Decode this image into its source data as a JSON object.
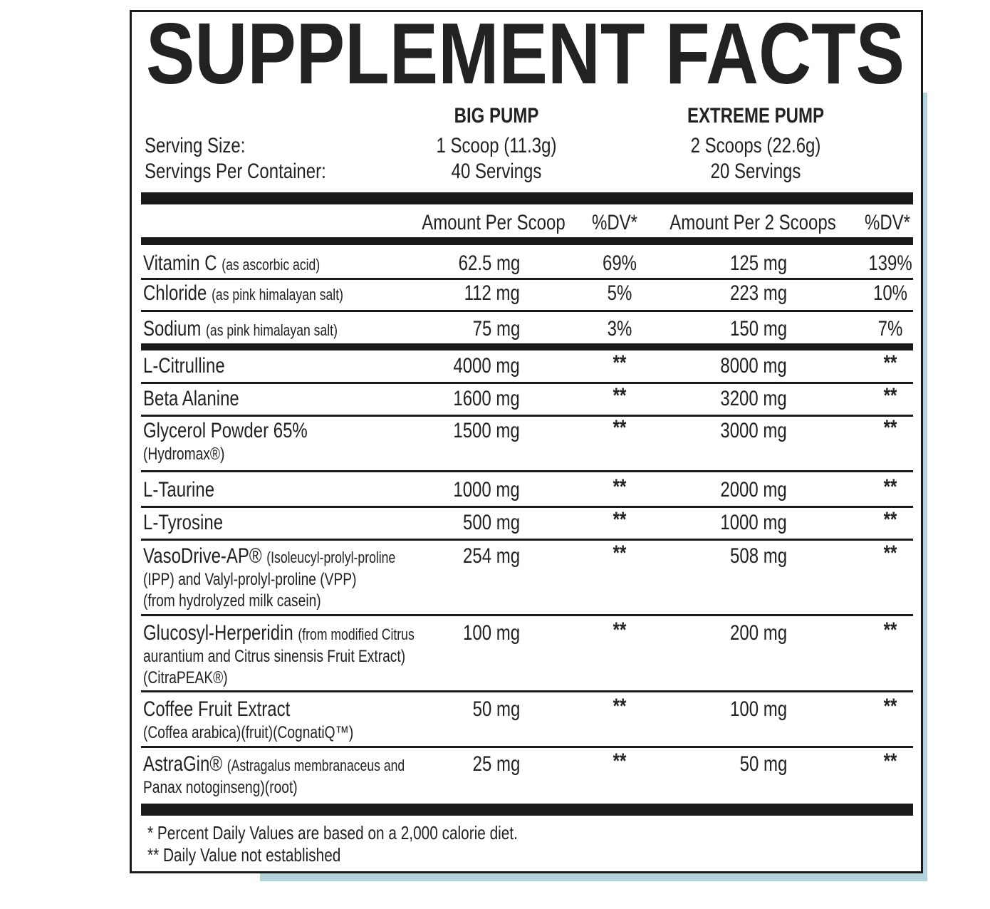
{
  "title": "SUPPLEMENT FACTS",
  "serving_size_label": "Serving Size:",
  "servings_label": "Servings Per Container:",
  "products": [
    {
      "name": "BIG PUMP",
      "serving_size": "1 Scoop (11.3g)",
      "servings": "40 Servings"
    },
    {
      "name": "EXTREME PUMP",
      "serving_size": "2 Scoops (22.6g)",
      "servings": "20 Servings"
    }
  ],
  "columns": [
    "Amount Per Scoop",
    "%DV*",
    "Amount Per 2 Scoops",
    "%DV*"
  ],
  "rows": [
    {
      "name": "Vitamin C",
      "detail_inline": "(as ascorbic acid)",
      "values": [
        "62.5 mg",
        "69%",
        "125 mg",
        "139%"
      ]
    },
    {
      "name": "Chloride",
      "detail_inline": "(as pink himalayan salt)",
      "values": [
        "112 mg",
        "5%",
        "223 mg",
        "10%"
      ]
    },
    {
      "name": "Sodium",
      "detail_inline": "(as pink himalayan salt)",
      "values": [
        "75 mg",
        "3%",
        "150 mg",
        "7%"
      ]
    },
    {
      "name": "L-Citrulline",
      "values": [
        "4000 mg",
        "**",
        "8000 mg",
        "**"
      ]
    },
    {
      "name": "Beta Alanine",
      "values": [
        "1600 mg",
        "**",
        "3200 mg",
        "**"
      ]
    },
    {
      "name": "Glycerol Powder 65%",
      "detail_lines": [
        "(Hydromax®)"
      ],
      "values": [
        "1500 mg",
        "**",
        "3000 mg",
        "**"
      ]
    },
    {
      "name": "L-Taurine",
      "values": [
        "1000 mg",
        "**",
        "2000 mg",
        "**"
      ]
    },
    {
      "name": "L-Tyrosine",
      "values": [
        "500 mg",
        "**",
        "1000 mg",
        "**"
      ]
    },
    {
      "name": "VasoDrive-AP®",
      "detail_inline": "(Isoleucyl-prolyl-proline",
      "detail_lines": [
        "(IPP) and Valyl-prolyl-proline (VPP)",
        "(from hydrolyzed milk casein)"
      ],
      "values": [
        "254 mg",
        "**",
        "508 mg",
        "**"
      ]
    },
    {
      "name": "Glucosyl-Herperidin",
      "detail_inline": "(from modified Citrus",
      "detail_lines": [
        "aurantium and Citrus sinensis Fruit Extract)",
        "(CitraPEAK®)"
      ],
      "values": [
        "100 mg",
        "**",
        "200 mg",
        "**"
      ]
    },
    {
      "name": "Coffee Fruit Extract",
      "detail_lines": [
        "(Coffea arabica)(fruit)(CognatiQ™)"
      ],
      "values": [
        "50 mg",
        "**",
        "100 mg",
        "**"
      ]
    },
    {
      "name": "AstraGin®",
      "detail_inline": "(Astragalus membranaceus and",
      "detail_lines": [
        "Panax notoginseng)(root)"
      ],
      "values": [
        "25 mg",
        "**",
        "50 mg",
        "**"
      ]
    }
  ],
  "footnotes": [
    "* Percent Daily Values are based on a 2,000 calorie diet.",
    "** Daily Value not established"
  ]
}
